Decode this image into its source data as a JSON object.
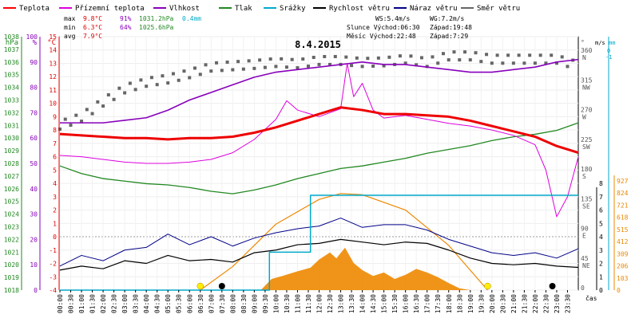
{
  "chart_data": {
    "type": "line",
    "title": "8.4.2015",
    "xlabel": "čas",
    "legend": [
      {
        "name": "Teplota",
        "color": "#ff0000"
      },
      {
        "name": "Přízemní teplota",
        "color": "#dd00dd"
      },
      {
        "name": "Vlhkost",
        "color": "#8800bb"
      },
      {
        "name": "Tlak",
        "color": "#228822"
      },
      {
        "name": "Srážky",
        "color": "#00aacc"
      },
      {
        "name": "Rychlost větru",
        "color": "#000000"
      },
      {
        "name": "Náraz větru",
        "color": "#000088"
      },
      {
        "name": "Směr větru",
        "color": "#666666"
      }
    ],
    "stats": {
      "rows": [
        {
          "label": "max",
          "temp": "9.8°C",
          "hum": "91%",
          "pres": "1031.2hPa",
          "rain": "0.4mm"
        },
        {
          "label": "min",
          "temp": "6.3°C",
          "hum": "64%",
          "pres": "1025.6hPa",
          "rain": ""
        },
        {
          "label": "avg",
          "temp": "7.9°C",
          "hum": "",
          "pres": "",
          "rain": ""
        }
      ],
      "wind_speed": "WS:5.4m/s",
      "wind_gust": "WG:7.2m/s",
      "sun": "Slunce Východ:06:30",
      "sunset": "Západ:19:48",
      "moon": "Měsíc Východ:22:48",
      "moonset": "Západ:7:29"
    },
    "axes": {
      "hpa": {
        "label": "hPa",
        "ticks": [
          "1018",
          "1019",
          "1020",
          "1021",
          "1022",
          "1023",
          "1024",
          "1025",
          "1026",
          "1027",
          "1028",
          "1029",
          "1030",
          "1031",
          "1032",
          "1033",
          "1034",
          "1035",
          "1036",
          "1037",
          "1038"
        ],
        "range": [
          1018,
          1038
        ],
        "color": "#228822"
      },
      "pct": {
        "label": "%",
        "ticks": [
          "0",
          "10",
          "20",
          "30",
          "40",
          "50",
          "60",
          "70",
          "80",
          "90",
          "100"
        ],
        "range": [
          0,
          100
        ],
        "color": "#8800bb"
      },
      "degc": {
        "label": "°C",
        "ticks": [
          "-4",
          "-3",
          "-2",
          "-1",
          "0",
          "1",
          "2",
          "3",
          "4",
          "5",
          "6",
          "7",
          "8",
          "9",
          "10",
          "11",
          "12",
          "13",
          "14",
          "15"
        ],
        "range": [
          -4,
          15
        ],
        "color": "#dd0000"
      },
      "dir": {
        "label": "°",
        "ticks": [
          {
            "v": 0,
            "t": "0"
          },
          {
            "v": 45,
            "t": "45",
            "c": "NE"
          },
          {
            "v": 90,
            "t": "90",
            "c": "E"
          },
          {
            "v": 135,
            "t": "135",
            "c": "SE"
          },
          {
            "v": 180,
            "t": "180",
            "c": "S"
          },
          {
            "v": 225,
            "t": "225",
            "c": "SW"
          },
          {
            "v": 270,
            "t": "270",
            "c": "W"
          },
          {
            "v": 315,
            "t": "315",
            "c": "NW"
          },
          {
            "v": 360,
            "t": "360",
            "c": "N"
          }
        ],
        "range": [
          0,
          360
        ],
        "color": "#555555"
      },
      "ms": {
        "label": "m/s",
        "ticks": [
          "0",
          "1",
          "2",
          "3",
          "4",
          "5",
          "6",
          "7",
          "8"
        ],
        "range": [
          0,
          8
        ],
        "color": "#000000"
      },
      "mm": {
        "label": "mm",
        "ticks": [
          "0",
          "-1"
        ],
        "color": "#00aacc"
      },
      "rad": {
        "ticks": [
          "0",
          "103",
          "206",
          "309",
          "412",
          "515",
          "618",
          "721",
          "824",
          "927"
        ],
        "range": [
          0,
          927
        ],
        "color": "#ee8800"
      }
    },
    "x_ticks": [
      "00:00",
      "00:30",
      "01:00",
      "01:30",
      "02:00",
      "02:30",
      "03:00",
      "03:30",
      "04:00",
      "04:30",
      "05:00",
      "05:30",
      "06:00",
      "06:30",
      "07:00",
      "07:30",
      "08:00",
      "08:30",
      "09:00",
      "09:30",
      "10:00",
      "10:30",
      "11:00",
      "11:30",
      "12:00",
      "12:30",
      "13:00",
      "13:30",
      "14:00",
      "14:30",
      "15:00",
      "15:30",
      "16:00",
      "16:30",
      "17:00",
      "17:30",
      "18:00",
      "18:30",
      "19:00",
      "19:30",
      "20:00",
      "20:30",
      "21:00",
      "21:30",
      "22:00",
      "22:30",
      "23:00",
      "23:30"
    ],
    "x_range_hours": [
      0,
      24
    ],
    "series": [
      {
        "name": "Teplota",
        "axis": "degc",
        "color": "#ee0000",
        "points": [
          [
            0,
            7.7
          ],
          [
            1,
            7.6
          ],
          [
            2,
            7.5
          ],
          [
            3,
            7.4
          ],
          [
            4,
            7.4
          ],
          [
            5,
            7.3
          ],
          [
            6,
            7.4
          ],
          [
            7,
            7.4
          ],
          [
            8,
            7.5
          ],
          [
            9,
            7.8
          ],
          [
            10,
            8.2
          ],
          [
            11,
            8.7
          ],
          [
            12,
            9.2
          ],
          [
            13,
            9.7
          ],
          [
            14,
            9.5
          ],
          [
            15,
            9.2
          ],
          [
            16,
            9.2
          ],
          [
            17,
            9.1
          ],
          [
            18,
            9.0
          ],
          [
            19,
            8.7
          ],
          [
            20,
            8.3
          ],
          [
            21,
            7.9
          ],
          [
            22,
            7.5
          ],
          [
            23,
            6.8
          ],
          [
            24,
            6.3
          ]
        ]
      },
      {
        "name": "Přízemní teplota",
        "axis": "degc",
        "color": "#dd00dd",
        "points": [
          [
            0,
            6.1
          ],
          [
            1,
            6.0
          ],
          [
            2,
            5.8
          ],
          [
            3,
            5.6
          ],
          [
            4,
            5.5
          ],
          [
            5,
            5.5
          ],
          [
            6,
            5.6
          ],
          [
            7,
            5.8
          ],
          [
            8,
            6.3
          ],
          [
            9,
            7.3
          ],
          [
            10,
            8.8
          ],
          [
            10.5,
            10.2
          ],
          [
            11,
            9.5
          ],
          [
            12,
            9.0
          ],
          [
            13,
            9.6
          ],
          [
            13.3,
            13.0
          ],
          [
            13.6,
            10.5
          ],
          [
            14,
            11.5
          ],
          [
            14.5,
            9.5
          ],
          [
            15,
            8.9
          ],
          [
            16,
            9.1
          ],
          [
            17,
            8.8
          ],
          [
            18,
            8.5
          ],
          [
            19,
            8.3
          ],
          [
            20,
            8.0
          ],
          [
            21,
            7.6
          ],
          [
            22,
            6.9
          ],
          [
            22.5,
            5.0
          ],
          [
            23,
            1.5
          ],
          [
            23.5,
            3.0
          ],
          [
            24,
            6.0
          ]
        ]
      },
      {
        "name": "Vlhkost",
        "axis": "pct",
        "color": "#8800bb",
        "points": [
          [
            0,
            66
          ],
          [
            1,
            66
          ],
          [
            2,
            66
          ],
          [
            3,
            67
          ],
          [
            4,
            68
          ],
          [
            5,
            71
          ],
          [
            6,
            75
          ],
          [
            7,
            78
          ],
          [
            8,
            81
          ],
          [
            9,
            84
          ],
          [
            10,
            86
          ],
          [
            11,
            87
          ],
          [
            12,
            88
          ],
          [
            13,
            89
          ],
          [
            14,
            90
          ],
          [
            15,
            89
          ],
          [
            16,
            89
          ],
          [
            17,
            88
          ],
          [
            18,
            87
          ],
          [
            19,
            86
          ],
          [
            20,
            86
          ],
          [
            21,
            87
          ],
          [
            22,
            88
          ],
          [
            23,
            90
          ],
          [
            24,
            91
          ]
        ]
      },
      {
        "name": "Tlak",
        "axis": "hpa",
        "color": "#228822",
        "points": [
          [
            0,
            1027.8
          ],
          [
            1,
            1027.2
          ],
          [
            2,
            1026.8
          ],
          [
            3,
            1026.6
          ],
          [
            4,
            1026.4
          ],
          [
            5,
            1026.3
          ],
          [
            6,
            1026.1
          ],
          [
            7,
            1025.8
          ],
          [
            8,
            1025.6
          ],
          [
            9,
            1025.9
          ],
          [
            10,
            1026.3
          ],
          [
            11,
            1026.8
          ],
          [
            12,
            1027.2
          ],
          [
            13,
            1027.6
          ],
          [
            14,
            1027.8
          ],
          [
            15,
            1028.1
          ],
          [
            16,
            1028.4
          ],
          [
            17,
            1028.8
          ],
          [
            18,
            1029.1
          ],
          [
            19,
            1029.4
          ],
          [
            20,
            1029.8
          ],
          [
            21,
            1030.1
          ],
          [
            22,
            1030.3
          ],
          [
            23,
            1030.6
          ],
          [
            24,
            1031.2
          ]
        ]
      },
      {
        "name": "Rychlost větru",
        "axis": "ms",
        "color": "#000000",
        "points": [
          [
            0,
            1.5
          ],
          [
            1,
            1.8
          ],
          [
            2,
            1.6
          ],
          [
            3,
            2.2
          ],
          [
            4,
            2.0
          ],
          [
            5,
            2.6
          ],
          [
            6,
            2.2
          ],
          [
            7,
            2.3
          ],
          [
            8,
            2.1
          ],
          [
            9,
            2.8
          ],
          [
            10,
            3.0
          ],
          [
            11,
            3.4
          ],
          [
            12,
            3.5
          ],
          [
            13,
            3.8
          ],
          [
            14,
            3.6
          ],
          [
            15,
            3.4
          ],
          [
            16,
            3.6
          ],
          [
            17,
            3.5
          ],
          [
            18,
            3.0
          ],
          [
            19,
            2.4
          ],
          [
            20,
            2.0
          ],
          [
            21,
            1.9
          ],
          [
            22,
            2.0
          ],
          [
            23,
            1.8
          ],
          [
            24,
            1.7
          ]
        ]
      },
      {
        "name": "Náraz větru",
        "axis": "ms",
        "color": "#000088",
        "points": [
          [
            0,
            1.8
          ],
          [
            1,
            2.6
          ],
          [
            2,
            2.2
          ],
          [
            3,
            3.0
          ],
          [
            4,
            3.2
          ],
          [
            5,
            4.2
          ],
          [
            6,
            3.4
          ],
          [
            7,
            4.0
          ],
          [
            8,
            3.3
          ],
          [
            9,
            3.9
          ],
          [
            10,
            4.3
          ],
          [
            11,
            4.6
          ],
          [
            12,
            4.8
          ],
          [
            13,
            5.4
          ],
          [
            14,
            4.7
          ],
          [
            15,
            4.9
          ],
          [
            16,
            4.9
          ],
          [
            17,
            4.5
          ],
          [
            18,
            3.8
          ],
          [
            19,
            3.3
          ],
          [
            20,
            2.8
          ],
          [
            21,
            2.6
          ],
          [
            22,
            2.8
          ],
          [
            23,
            2.4
          ],
          [
            24,
            3.1
          ]
        ]
      },
      {
        "name": "Srážky",
        "axis": "mm",
        "color": "#00aacc",
        "points": [
          [
            0,
            0
          ],
          [
            9.7,
            0
          ],
          [
            9.7,
            0.16
          ],
          [
            11.6,
            0.16
          ],
          [
            11.6,
            0.4
          ],
          [
            24,
            0.4
          ]
        ]
      },
      {
        "name": "Radiace",
        "axis": "rad",
        "color": "#ee8800",
        "points": [
          [
            0,
            0
          ],
          [
            9.3,
            0
          ],
          [
            9.8,
            95
          ],
          [
            10.3,
            120
          ],
          [
            11,
            160
          ],
          [
            11.6,
            190
          ],
          [
            12,
            260
          ],
          [
            12.5,
            320
          ],
          [
            12.8,
            270
          ],
          [
            13.2,
            360
          ],
          [
            13.6,
            230
          ],
          [
            14,
            170
          ],
          [
            14.5,
            120
          ],
          [
            15,
            150
          ],
          [
            15.5,
            95
          ],
          [
            16,
            130
          ],
          [
            16.5,
            180
          ],
          [
            17,
            150
          ],
          [
            17.5,
            110
          ],
          [
            18,
            60
          ],
          [
            18.5,
            15
          ],
          [
            19,
            0
          ],
          [
            24,
            0
          ]
        ]
      },
      {
        "name": "Max radiace",
        "axis": "rad",
        "color": "#ee8800",
        "points": [
          [
            6.5,
            0
          ],
          [
            8,
            200
          ],
          [
            10,
            560
          ],
          [
            12,
            770
          ],
          [
            13,
            820
          ],
          [
            14,
            810
          ],
          [
            16,
            680
          ],
          [
            18,
            380
          ],
          [
            19.8,
            0
          ]
        ]
      },
      {
        "name": "Směr větru",
        "axis": "dir",
        "color": "#666666",
        "points": [
          [
            0,
            250
          ],
          [
            1,
            262
          ],
          [
            2,
            285
          ],
          [
            3,
            305
          ],
          [
            4,
            315
          ],
          [
            5,
            320
          ],
          [
            6,
            328
          ],
          [
            7,
            338
          ],
          [
            8,
            340
          ],
          [
            9,
            342
          ],
          [
            10,
            345
          ],
          [
            11,
            343
          ],
          [
            12,
            348
          ],
          [
            13,
            348
          ],
          [
            14,
            345
          ],
          [
            15,
            346
          ],
          [
            16,
            350
          ],
          [
            17,
            345
          ],
          [
            18,
            355
          ],
          [
            19,
            355
          ],
          [
            20,
            350
          ],
          [
            21,
            350
          ],
          [
            22,
            350
          ],
          [
            23,
            350
          ],
          [
            24,
            340
          ]
        ]
      }
    ],
    "markers": [
      {
        "kind": "sun-rise",
        "hour": 6.5,
        "color": "#ffee00"
      },
      {
        "kind": "moon-set",
        "hour": 7.5,
        "color": "#000000"
      },
      {
        "kind": "sun-set",
        "hour": 19.8,
        "color": "#ffee00"
      },
      {
        "kind": "moon-rise",
        "hour": 22.8,
        "color": "#000000"
      }
    ]
  }
}
